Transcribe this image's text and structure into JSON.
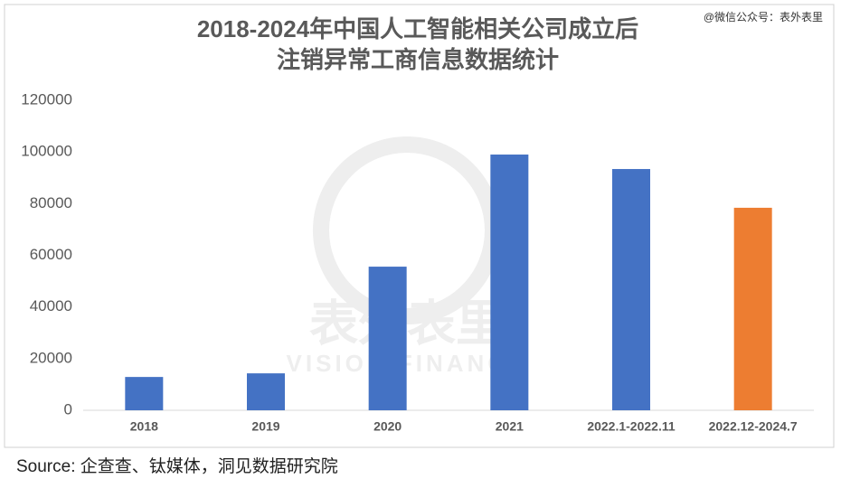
{
  "chart_data": {
    "type": "bar",
    "title": [
      "2018-2024年中国人工智能相关公司成立后",
      "注销异常工商信息数据统计"
    ],
    "credit": "@微信公众号：表外表里",
    "background_watermark": [
      "表外表里",
      "VISION FINANCE"
    ],
    "categories": [
      "2018",
      "2019",
      "2020",
      "2021",
      "2022.1-2022.11",
      "2022.12-2024.7"
    ],
    "values": [
      12900,
      14300,
      55600,
      99000,
      93400,
      78400
    ],
    "colors": [
      "#4472c4",
      "#4472c4",
      "#4472c4",
      "#4472c4",
      "#4472c4",
      "#ed7d31"
    ],
    "ylim": [
      0,
      120000
    ],
    "yticks": [
      0,
      20000,
      40000,
      60000,
      80000,
      100000,
      120000
    ],
    "grid": false,
    "source": "Source: 企查查、钛媒体，洞见数据研究院"
  }
}
